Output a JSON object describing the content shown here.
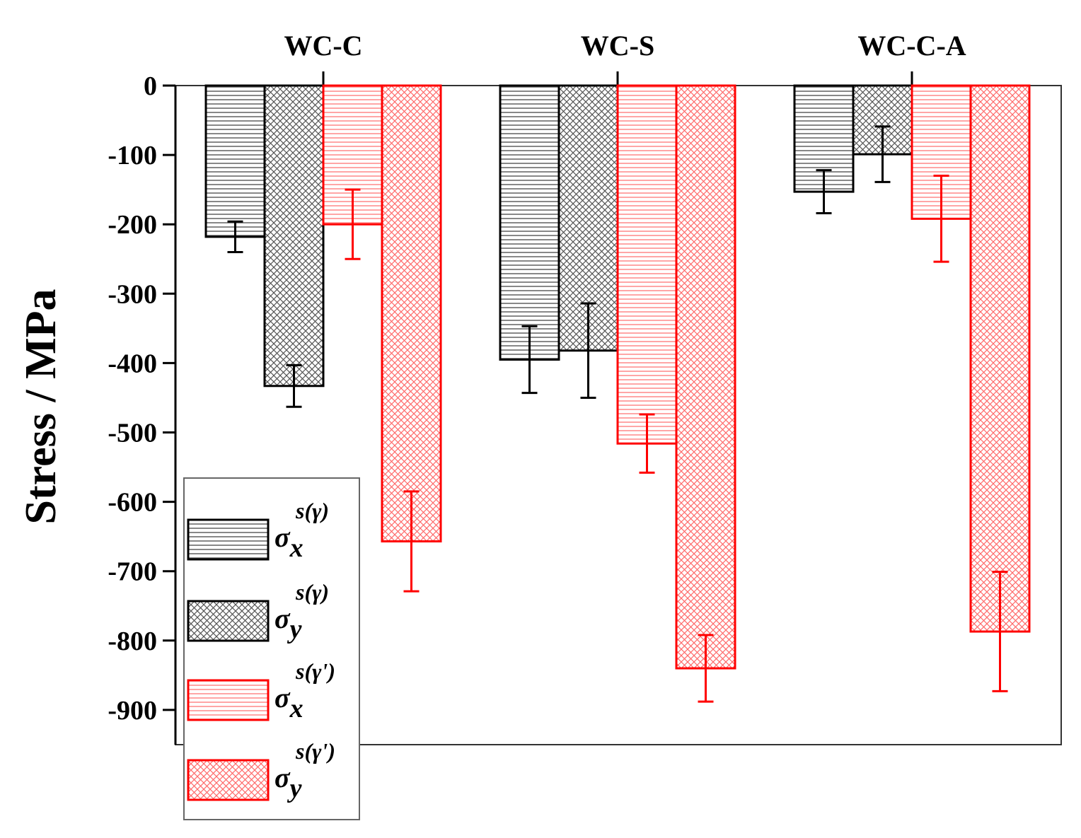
{
  "chart_data": {
    "type": "bar",
    "title": "",
    "xlabel": "",
    "ylabel": "Stress / MPa",
    "ylim": [
      -950,
      0
    ],
    "yticks": [
      0,
      -100,
      -200,
      -300,
      -400,
      -500,
      -600,
      -700,
      -800,
      -900
    ],
    "categories": [
      "WC-C",
      "WC-S",
      "WC-C-A"
    ],
    "category_axis_position": "top",
    "grid": false,
    "legend_position": "bottom-left",
    "series": [
      {
        "name": "σx s(γ)",
        "legend": {
          "base": "σ",
          "sub": "x",
          "sup": "s(γ)"
        },
        "color": "#000000",
        "pattern": "horizontal-lines",
        "values": [
          -218,
          -395,
          -153
        ],
        "errors": [
          22,
          48,
          31
        ]
      },
      {
        "name": "σy s(γ)",
        "legend": {
          "base": "σ",
          "sub": "y",
          "sup": "s(γ)"
        },
        "color": "#000000",
        "pattern": "crosshatch",
        "values": [
          -433,
          -382,
          -99
        ],
        "errors": [
          30,
          68,
          40
        ]
      },
      {
        "name": "σx s(γ')",
        "legend": {
          "base": "σ",
          "sub": "x",
          "sup": "s(γ')"
        },
        "color": "#ff0000",
        "pattern": "horizontal-lines",
        "values": [
          -200,
          -516,
          -192
        ],
        "errors": [
          50,
          42,
          62
        ]
      },
      {
        "name": "σy s(γ')",
        "legend": {
          "base": "σ",
          "sub": "y",
          "sup": "s(γ')"
        },
        "color": "#ff0000",
        "pattern": "crosshatch",
        "values": [
          -657,
          -840,
          -787
        ],
        "errors": [
          72,
          48,
          86
        ]
      }
    ]
  }
}
